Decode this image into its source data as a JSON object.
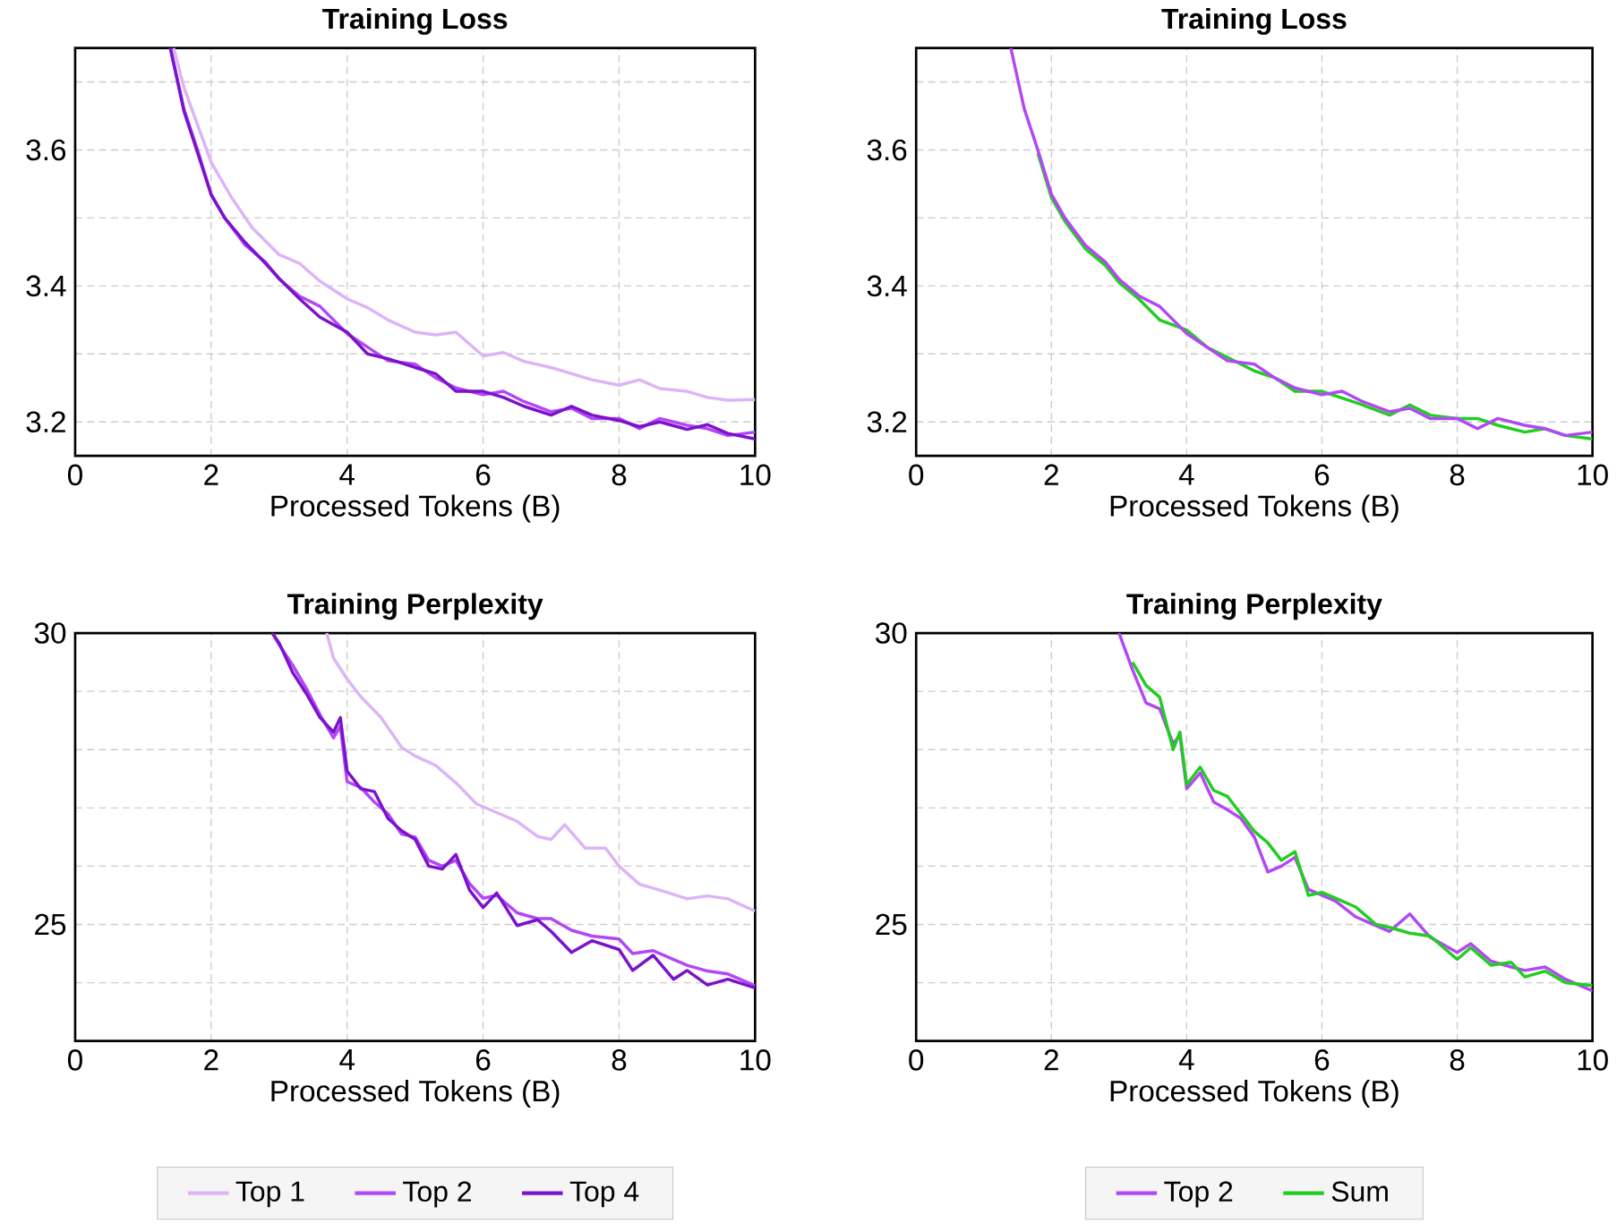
{
  "chart_data": [
    {
      "type": "line",
      "title": "Training Loss",
      "xlabel": "Processed Tokens (B)",
      "xlim": [
        0,
        10
      ],
      "xticks": [
        0,
        2,
        4,
        6,
        8,
        10
      ],
      "ylim": [
        3.15,
        3.75
      ],
      "yticks": [
        3.2,
        {
          "value": 3.3,
          "label": null
        },
        3.4,
        {
          "value": 3.5,
          "label": null
        },
        3.6,
        {
          "value": 3.7,
          "label": null
        }
      ],
      "grid": true,
      "series": [
        {
          "color": "#dcb4f7",
          "x": [
            1.45,
            1.6,
            2.0,
            2.3,
            2.6,
            3.0,
            3.3,
            3.6,
            4.0,
            4.3,
            4.6,
            5.0,
            5.3,
            5.6,
            6.0,
            6.3,
            6.6,
            7.0,
            7.3,
            7.6,
            8.0,
            8.3,
            8.6,
            9.0,
            9.3,
            9.6,
            10
          ],
          "values": [
            3.75,
            3.692,
            3.582,
            3.53,
            3.486,
            3.446,
            3.433,
            3.407,
            3.381,
            3.368,
            3.35,
            3.332,
            3.328,
            3.332,
            3.297,
            3.302,
            3.289,
            3.28,
            3.271,
            3.262,
            3.254,
            3.262,
            3.249,
            3.245,
            3.236,
            3.232,
            3.233
          ]
        },
        {
          "color": "#b347f5",
          "x": [
            1.4,
            1.6,
            1.8,
            2.0,
            2.2,
            2.5,
            2.8,
            3.0,
            3.3,
            3.6,
            4.0,
            4.3,
            4.6,
            5.0,
            5.3,
            5.6,
            6.0,
            6.3,
            6.6,
            7.0,
            7.3,
            7.6,
            8.0,
            8.3,
            8.6,
            9.0,
            9.3,
            9.6,
            10
          ],
          "values": [
            3.75,
            3.66,
            3.6,
            3.535,
            3.5,
            3.46,
            3.435,
            3.41,
            3.385,
            3.37,
            3.33,
            3.31,
            3.29,
            3.285,
            3.265,
            3.25,
            3.24,
            3.245,
            3.23,
            3.215,
            3.22,
            3.205,
            3.205,
            3.19,
            3.205,
            3.195,
            3.19,
            3.18,
            3.185
          ]
        },
        {
          "color": "#7b12cc",
          "x": [
            1.4,
            1.6,
            1.8,
            2.0,
            2.2,
            2.5,
            2.8,
            3.0,
            3.3,
            3.6,
            4.0,
            4.3,
            4.6,
            5.0,
            5.3,
            5.6,
            6.0,
            6.3,
            6.6,
            7.0,
            7.3,
            7.6,
            8.0,
            8.3,
            8.6,
            9.0,
            9.3,
            9.6,
            10
          ],
          "values": [
            3.75,
            3.657,
            3.596,
            3.534,
            3.5,
            3.464,
            3.433,
            3.411,
            3.381,
            3.354,
            3.332,
            3.3,
            3.293,
            3.28,
            3.271,
            3.245,
            3.245,
            3.236,
            3.223,
            3.21,
            3.223,
            3.21,
            3.202,
            3.193,
            3.2,
            3.189,
            3.196,
            3.183,
            3.175
          ]
        }
      ]
    },
    {
      "type": "line",
      "title": "Training Loss",
      "xlabel": "Processed Tokens (B)",
      "xlim": [
        0,
        10
      ],
      "xticks": [
        0,
        2,
        4,
        6,
        8,
        10
      ],
      "ylim": [
        3.15,
        3.75
      ],
      "yticks": [
        3.2,
        {
          "value": 3.3,
          "label": null
        },
        3.4,
        {
          "value": 3.5,
          "label": null
        },
        3.6,
        {
          "value": 3.7,
          "label": null
        }
      ],
      "grid": true,
      "series": [
        {
          "color": "#22cc22",
          "x": [
            1.8,
            2.0,
            2.2,
            2.5,
            2.8,
            3.0,
            3.3,
            3.6,
            4.0,
            4.3,
            4.6,
            5.0,
            5.3,
            5.6,
            6.0,
            6.3,
            6.6,
            7.0,
            7.3,
            7.6,
            8.0,
            8.3,
            8.6,
            9.0,
            9.3,
            9.6,
            10
          ],
          "values": [
            3.595,
            3.53,
            3.495,
            3.455,
            3.43,
            3.405,
            3.38,
            3.35,
            3.335,
            3.31,
            3.295,
            3.275,
            3.265,
            3.245,
            3.245,
            3.235,
            3.225,
            3.21,
            3.225,
            3.21,
            3.205,
            3.205,
            3.195,
            3.185,
            3.19,
            3.18,
            3.175
          ]
        },
        {
          "color": "#b347f5",
          "x": [
            1.4,
            1.6,
            1.8,
            2.0,
            2.2,
            2.5,
            2.8,
            3.0,
            3.3,
            3.6,
            4.0,
            4.3,
            4.6,
            5.0,
            5.3,
            5.6,
            6.0,
            6.3,
            6.6,
            7.0,
            7.3,
            7.6,
            8.0,
            8.3,
            8.6,
            9.0,
            9.3,
            9.6,
            10
          ],
          "values": [
            3.75,
            3.66,
            3.6,
            3.535,
            3.5,
            3.46,
            3.435,
            3.41,
            3.385,
            3.37,
            3.33,
            3.31,
            3.29,
            3.285,
            3.265,
            3.25,
            3.24,
            3.245,
            3.23,
            3.215,
            3.22,
            3.205,
            3.205,
            3.19,
            3.205,
            3.195,
            3.19,
            3.18,
            3.185
          ]
        }
      ]
    },
    {
      "type": "line",
      "title": "Training Perplexity",
      "xlabel": "Processed Tokens (B)",
      "xlim": [
        0,
        10
      ],
      "xticks": [
        0,
        2,
        4,
        6,
        8,
        10
      ],
      "ylim": [
        23,
        30
      ],
      "yticks": [
        {
          "value": 24,
          "label": null
        },
        25,
        {
          "value": 26,
          "label": null
        },
        {
          "value": 27,
          "label": null
        },
        {
          "value": 28,
          "label": null
        },
        {
          "value": 29,
          "label": null
        },
        30
      ],
      "grid": true,
      "legend": "bottom",
      "series": [
        {
          "name": "Top 1",
          "color": "#dcb4f7",
          "x": [
            3.7,
            3.8,
            4.0,
            4.2,
            4.5,
            4.8,
            5.0,
            5.3,
            5.6,
            5.9,
            6.2,
            6.5,
            6.8,
            7.0,
            7.2,
            7.5,
            7.8,
            8.0,
            8.3,
            8.6,
            9.0,
            9.3,
            9.6,
            10
          ],
          "values": [
            30,
            29.57,
            29.21,
            28.91,
            28.55,
            28.04,
            27.89,
            27.73,
            27.43,
            27.07,
            26.92,
            26.77,
            26.51,
            26.46,
            26.71,
            26.31,
            26.31,
            26.0,
            25.69,
            25.59,
            25.44,
            25.49,
            25.44,
            25.23
          ]
        },
        {
          "name": "Top 2",
          "color": "#b347f5",
          "x": [
            2.9,
            3.0,
            3.2,
            3.4,
            3.6,
            3.8,
            3.9,
            4.0,
            4.2,
            4.4,
            4.6,
            4.8,
            5.0,
            5.2,
            5.4,
            5.6,
            5.8,
            6.0,
            6.2,
            6.5,
            6.8,
            7.0,
            7.3,
            7.6,
            8.0,
            8.2,
            8.5,
            8.8,
            9.0,
            9.3,
            9.6,
            10
          ],
          "values": [
            30,
            29.8,
            29.45,
            29.05,
            28.6,
            28.2,
            28.4,
            27.45,
            27.35,
            27.1,
            26.9,
            26.55,
            26.5,
            26.1,
            26.0,
            26.1,
            25.7,
            25.45,
            25.5,
            25.2,
            25.1,
            25.1,
            24.9,
            24.8,
            24.75,
            24.5,
            24.55,
            24.4,
            24.3,
            24.2,
            24.15,
            23.95
          ]
        },
        {
          "name": "Top 4",
          "color": "#7b12cc",
          "x": [
            2.9,
            3.0,
            3.2,
            3.4,
            3.6,
            3.8,
            3.9,
            4.0,
            4.2,
            4.4,
            4.6,
            4.8,
            5.0,
            5.2,
            5.4,
            5.6,
            5.8,
            6.0,
            6.2,
            6.5,
            6.8,
            7.0,
            7.3,
            7.6,
            8.0,
            8.2,
            8.5,
            8.8,
            9.0,
            9.3,
            9.6,
            10
          ],
          "values": [
            30,
            29.83,
            29.32,
            28.96,
            28.55,
            28.3,
            28.55,
            27.63,
            27.33,
            27.28,
            26.82,
            26.61,
            26.46,
            26.0,
            25.95,
            26.2,
            25.59,
            25.29,
            25.54,
            24.98,
            25.08,
            24.88,
            24.52,
            24.72,
            24.57,
            24.21,
            24.47,
            24.06,
            24.21,
            23.96,
            24.06,
            23.91
          ]
        }
      ]
    },
    {
      "type": "line",
      "title": "Training Perplexity",
      "xlabel": "Processed Tokens (B)",
      "xlim": [
        0,
        10
      ],
      "xticks": [
        0,
        2,
        4,
        6,
        8,
        10
      ],
      "ylim": [
        23,
        30
      ],
      "yticks": [
        {
          "value": 24,
          "label": null
        },
        25,
        {
          "value": 26,
          "label": null
        },
        {
          "value": 27,
          "label": null
        },
        {
          "value": 28,
          "label": null
        },
        {
          "value": 29,
          "label": null
        },
        30
      ],
      "grid": true,
      "legend": "bottom",
      "series": [
        {
          "name": "Top 2",
          "color": "#b347f5",
          "x": [
            3.0,
            3.2,
            3.4,
            3.6,
            3.8,
            3.9,
            4.0,
            4.2,
            4.4,
            4.6,
            4.8,
            5.0,
            5.2,
            5.4,
            5.6,
            5.8,
            6.0,
            6.2,
            6.5,
            6.8,
            7.0,
            7.3,
            7.6,
            8.0,
            8.2,
            8.5,
            8.8,
            9.0,
            9.3,
            9.6,
            10
          ],
          "values": [
            30,
            29.37,
            28.8,
            28.7,
            28.1,
            28.25,
            27.33,
            27.6,
            27.1,
            26.97,
            26.82,
            26.5,
            25.9,
            26.0,
            26.15,
            25.6,
            25.5,
            25.4,
            25.13,
            24.98,
            24.88,
            25.18,
            24.78,
            24.52,
            24.67,
            24.37,
            24.27,
            24.21,
            24.27,
            24.06,
            23.86
          ]
        },
        {
          "name": "Sum",
          "color": "#22cc22",
          "x": [
            3.2,
            3.4,
            3.6,
            3.8,
            3.9,
            4.0,
            4.2,
            4.4,
            4.6,
            4.8,
            5.0,
            5.2,
            5.4,
            5.6,
            5.8,
            6.0,
            6.2,
            6.5,
            6.8,
            7.0,
            7.3,
            7.6,
            8.0,
            8.2,
            8.5,
            8.8,
            9.0,
            9.3,
            9.6,
            10
          ],
          "values": [
            29.5,
            29.1,
            28.9,
            28.0,
            28.3,
            27.4,
            27.7,
            27.3,
            27.2,
            26.9,
            26.6,
            26.4,
            26.1,
            26.25,
            25.5,
            25.55,
            25.45,
            25.3,
            25.0,
            24.95,
            24.85,
            24.8,
            24.4,
            24.6,
            24.3,
            24.35,
            24.1,
            24.2,
            24.0,
            23.95
          ]
        }
      ]
    }
  ]
}
